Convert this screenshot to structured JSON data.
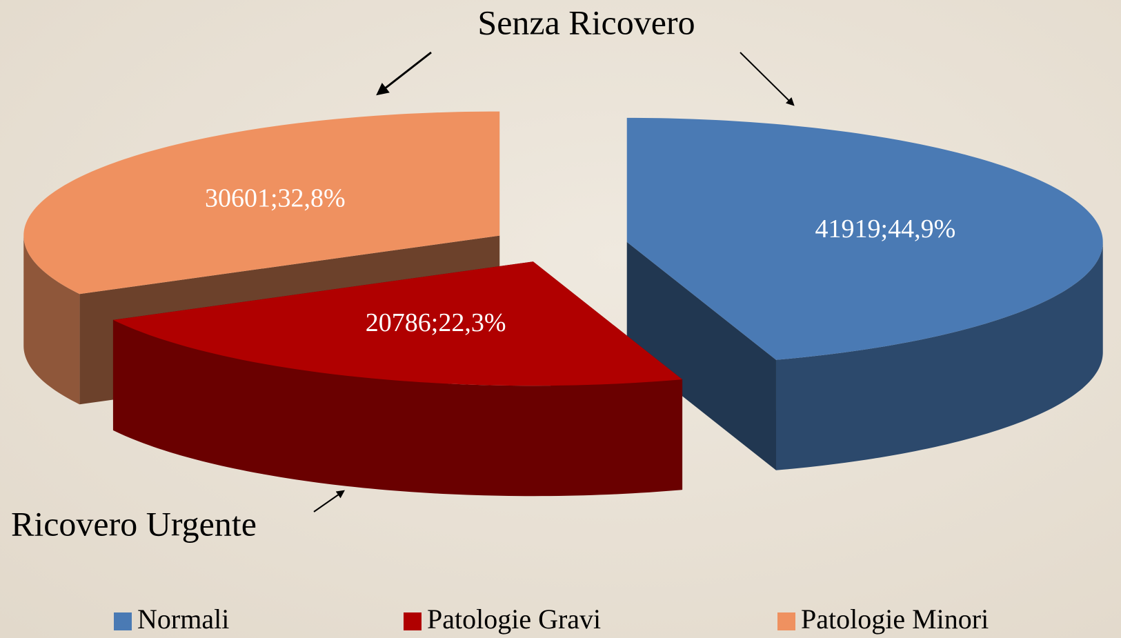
{
  "chart_data": {
    "type": "pie3d",
    "categories": [
      "Normali",
      "Patologie Gravi",
      "Patologie Minori"
    ],
    "values": [
      41919,
      20786,
      30601
    ],
    "value_labels": [
      "41919;44,9%",
      "20786;22,3%",
      "30601;32,8%"
    ],
    "colors": [
      "#4a7ab4",
      "#b00000",
      "#ef9160"
    ],
    "annotations": [
      "Senza Ricovero",
      "Ricovero Urgente"
    ],
    "legend": "bottom"
  }
}
